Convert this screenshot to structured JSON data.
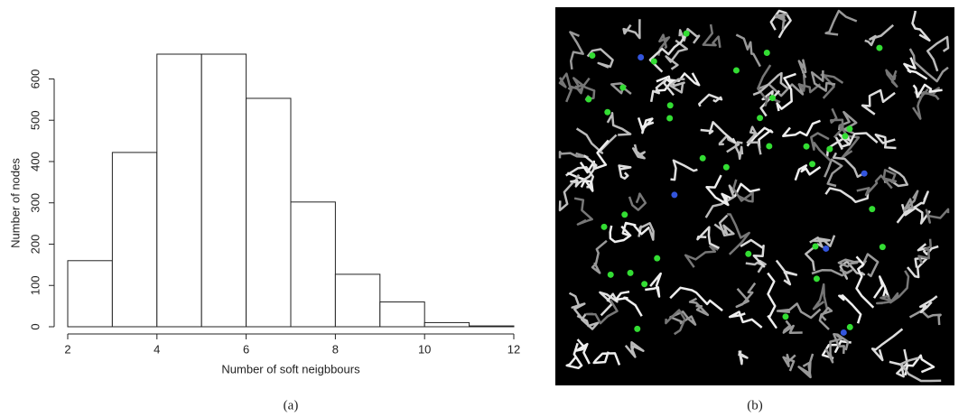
{
  "chart_data": {
    "type": "histogram",
    "bins": [
      2,
      3,
      4,
      5,
      6,
      7,
      8,
      9,
      10,
      11,
      12
    ],
    "values": [
      160,
      422,
      660,
      660,
      553,
      302,
      127,
      60,
      10,
      2
    ],
    "color": "#ffffff",
    "xlim": [
      2,
      12
    ],
    "xticks": [
      2,
      4,
      6,
      8,
      10,
      12
    ],
    "ylim": [
      0,
      660
    ],
    "yticks": [
      0,
      100,
      200,
      300,
      400,
      500,
      600
    ],
    "xlabel": "Number of soft neigbbours",
    "ylabel": "Number of nodes",
    "caption": "(a)"
  },
  "image_b": {
    "caption": "(b)"
  }
}
